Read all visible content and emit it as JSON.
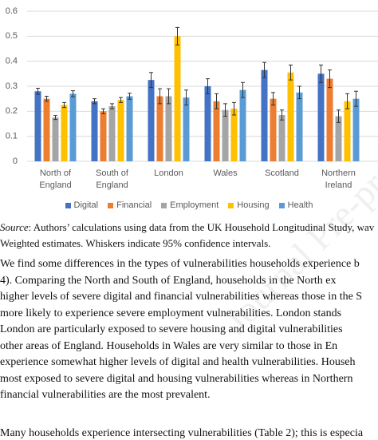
{
  "chart_data": {
    "type": "bar",
    "categories": [
      "North of England",
      "South of England",
      "London",
      "Wales",
      "Scotland",
      "Northern Ireland"
    ],
    "series": [
      {
        "name": "Digital",
        "color": "#4472c4",
        "values": [
          0.28,
          0.24,
          0.325,
          0.3,
          0.365,
          0.35
        ],
        "errors": [
          0.012,
          0.01,
          0.03,
          0.03,
          0.03,
          0.035
        ]
      },
      {
        "name": "Financial",
        "color": "#ed7d31",
        "values": [
          0.25,
          0.2,
          0.26,
          0.24,
          0.25,
          0.33
        ],
        "errors": [
          0.01,
          0.01,
          0.03,
          0.03,
          0.025,
          0.035
        ]
      },
      {
        "name": "Employment",
        "color": "#a5a5a5",
        "values": [
          0.175,
          0.22,
          0.26,
          0.205,
          0.185,
          0.18
        ],
        "errors": [
          0.008,
          0.01,
          0.03,
          0.025,
          0.02,
          0.025
        ]
      },
      {
        "name": "Housing",
        "color": "#ffc000",
        "values": [
          0.225,
          0.245,
          0.5,
          0.21,
          0.355,
          0.24
        ],
        "errors": [
          0.01,
          0.01,
          0.035,
          0.025,
          0.03,
          0.03
        ]
      },
      {
        "name": "Health",
        "color": "#5b9bd5",
        "values": [
          0.27,
          0.26,
          0.255,
          0.285,
          0.275,
          0.25
        ],
        "errors": [
          0.012,
          0.012,
          0.03,
          0.03,
          0.025,
          0.03
        ]
      }
    ],
    "ylim": [
      0,
      0.6
    ],
    "yticks": [
      0,
      0.1,
      0.2,
      0.3,
      0.4,
      0.5,
      0.6
    ],
    "grid": true,
    "legend": "bottom"
  },
  "caption": {
    "source_label": "Source",
    "source_text": ": Authors’ calculations using data from the UK Household Longitudinal Study, wav",
    "note": "Weighted estimates. Whiskers indicate 95% confidence intervals."
  },
  "paragraphs": [
    [
      "We find some differences in the types of vulnerabilities households experience b",
      "4). Comparing the North and South of England, households in the North ex",
      "higher levels of severe digital and financial vulnerabilities whereas those in the S",
      "more likely to experience severe employment vulnerabilities. London stands",
      "London are particularly exposed to severe housing and digital vulnerabilities",
      "other areas of England. Households in Wales are very similar to those in En",
      "experience somewhat higher levels of digital and health vulnerabilities. Househ",
      "most exposed to severe digital and housing vulnerabilities whereas in Northern",
      "financial vulnerabilities are the most prevalent."
    ],
    [
      "Many households experience intersecting vulnerabilities (Table 2); this is especia"
    ]
  ],
  "watermark": "Journal Pre-proof"
}
